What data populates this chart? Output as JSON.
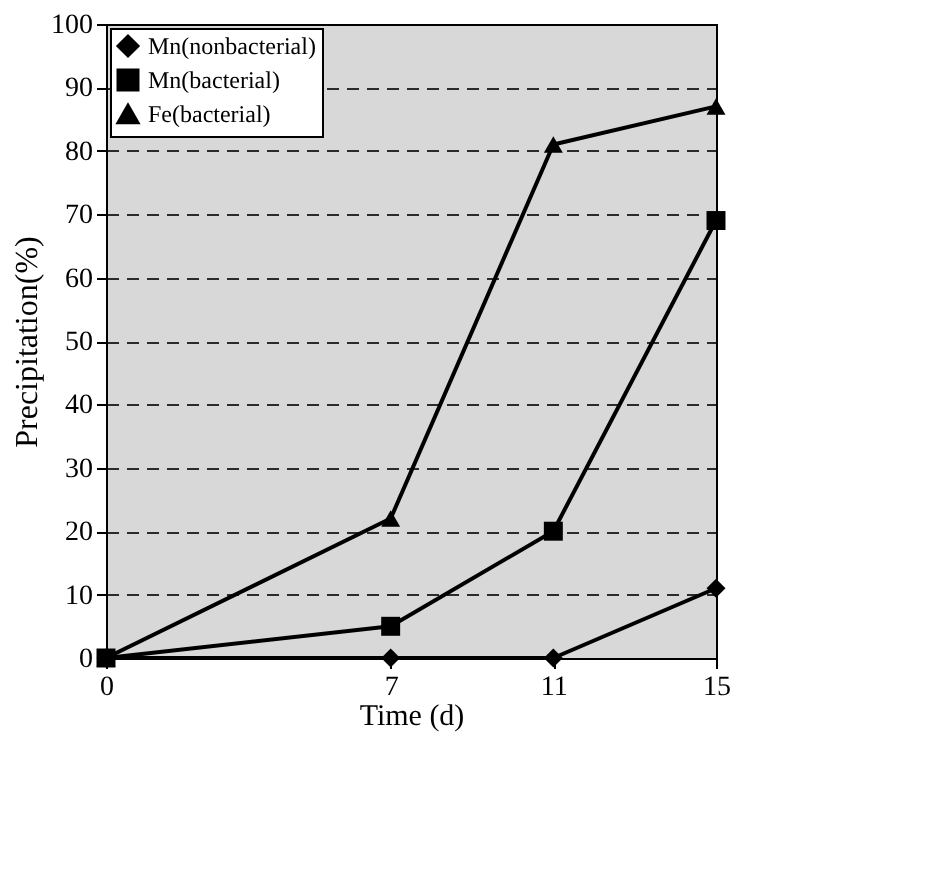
{
  "chart_data": {
    "type": "line",
    "xlabel": "Time (d)",
    "ylabel": "Precipitation(%)",
    "x": [
      0,
      7,
      11,
      15
    ],
    "series": [
      {
        "name": "Mn(nonbacterial)",
        "color": "#000000",
        "marker": "diamond",
        "values": [
          0,
          0,
          0,
          11
        ]
      },
      {
        "name": "Mn(bacterial)",
        "color": "#000000",
        "marker": "square",
        "values": [
          0,
          5,
          20,
          69
        ]
      },
      {
        "name": "Fe(bacterial)",
        "color": "#000000",
        "marker": "triangle",
        "values": [
          0,
          22,
          81,
          87
        ]
      }
    ],
    "xlim": [
      0,
      15
    ],
    "xticks": [
      0,
      7,
      11,
      15
    ],
    "ylim": [
      0,
      100
    ],
    "yticks": [
      0,
      10,
      20,
      30,
      40,
      50,
      60,
      70,
      80,
      90,
      100
    ],
    "grid": "y",
    "legend": "top left",
    "line_style": "solid"
  }
}
